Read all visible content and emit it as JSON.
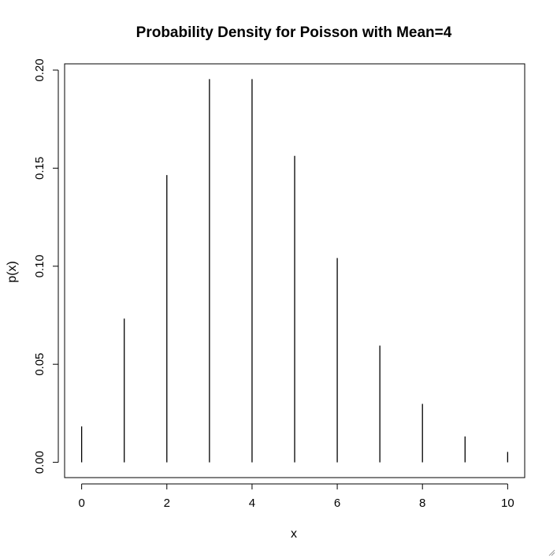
{
  "chart_data": {
    "type": "bar",
    "style": "spike",
    "title": "Probability Density for Poisson with Mean=4",
    "xlabel": "x",
    "ylabel": "p(x)",
    "x": [
      0,
      1,
      2,
      3,
      4,
      5,
      6,
      7,
      8,
      9,
      10
    ],
    "values": [
      0.0183,
      0.0733,
      0.1465,
      0.1954,
      0.1954,
      0.1563,
      0.1042,
      0.0595,
      0.0298,
      0.0132,
      0.0053
    ],
    "xlim": [
      -0.4,
      10.4
    ],
    "ylim": [
      -0.0078,
      0.2032
    ],
    "xticks": [
      0,
      2,
      4,
      6,
      8,
      10
    ],
    "yticks": [
      0.0,
      0.05,
      0.1,
      0.15,
      0.2
    ],
    "xtick_labels": [
      "0",
      "2",
      "4",
      "6",
      "8",
      "10"
    ],
    "ytick_labels": [
      "0.00",
      "0.05",
      "0.10",
      "0.15",
      "0.20"
    ],
    "grid": false,
    "legend": "none",
    "color": "#000000"
  }
}
